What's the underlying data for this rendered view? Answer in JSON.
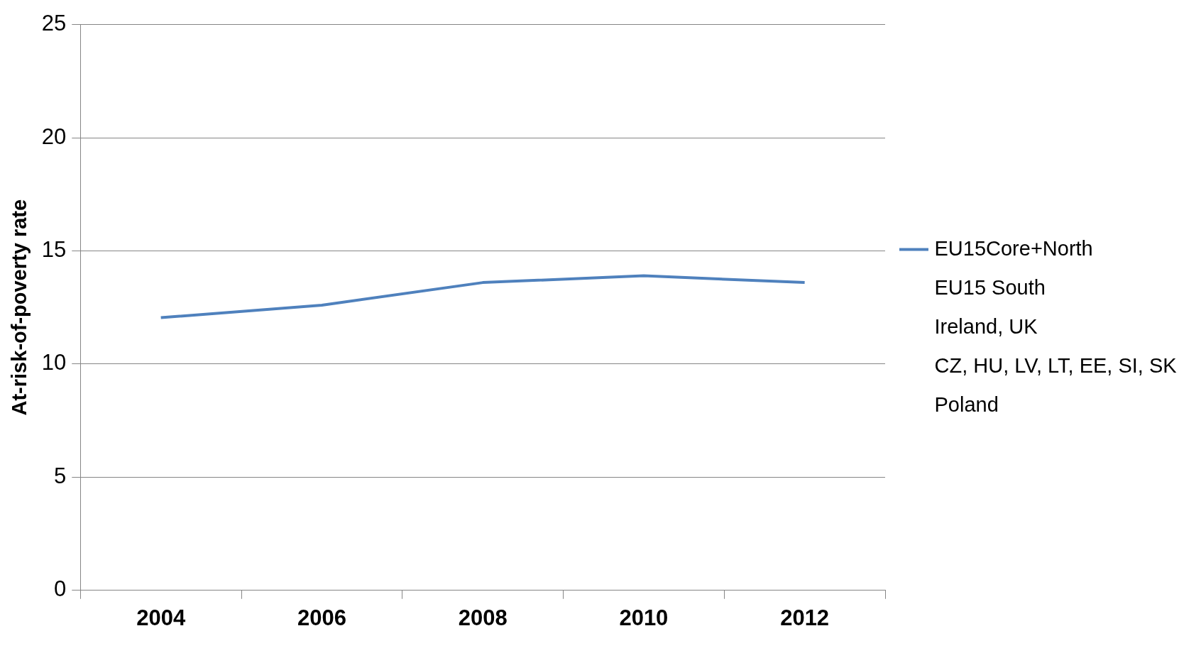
{
  "chart_data": {
    "type": "line",
    "ylabel": "At-risk-of-poverty rate",
    "categories": [
      "2004",
      "2006",
      "2008",
      "2010",
      "2012"
    ],
    "series": [
      {
        "name": "EU15Core+North",
        "color": "#4f81bd",
        "values": [
          12.05,
          12.6,
          13.6,
          13.9,
          13.6
        ]
      },
      {
        "name": "EU15 South",
        "values": [
          null,
          null,
          null,
          null,
          null
        ]
      },
      {
        "name": "Ireland, UK",
        "values": [
          null,
          null,
          null,
          null,
          null
        ]
      },
      {
        "name": "CZ, HU, LV, LT, EE, SI, SK",
        "values": [
          null,
          null,
          null,
          null,
          null
        ]
      },
      {
        "name": "Poland",
        "values": [
          null,
          null,
          null,
          null,
          null
        ]
      }
    ],
    "ylim": [
      0,
      25
    ],
    "yticks": [
      0,
      5,
      10,
      15,
      20,
      25
    ],
    "grid": "y",
    "legend": "right",
    "marker": "none",
    "line_style": "solid"
  }
}
